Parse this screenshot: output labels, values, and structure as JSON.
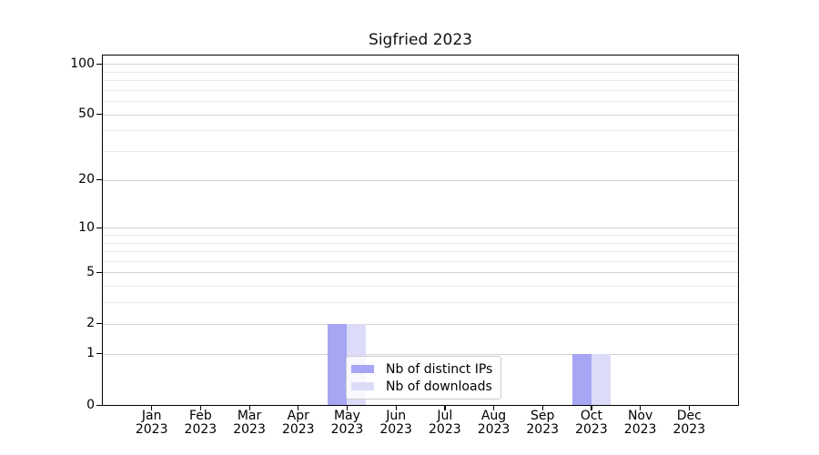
{
  "title": "Sigfried 2023",
  "chart_data": {
    "type": "bar",
    "title": "Sigfried 2023",
    "xlabel": "",
    "ylabel": "",
    "categories": [
      "Jan\n2023",
      "Feb\n2023",
      "Mar\n2023",
      "Apr\n2023",
      "May\n2023",
      "Jun\n2023",
      "Jul\n2023",
      "Aug\n2023",
      "Sep\n2023",
      "Oct\n2023",
      "Nov\n2023",
      "Dec\n2023"
    ],
    "series": [
      {
        "name": "Nb of distinct IPs",
        "color": "#a6a6f4",
        "values": [
          0,
          0,
          0,
          0,
          2,
          0,
          0,
          0,
          0,
          1,
          0,
          0
        ]
      },
      {
        "name": "Nb of downloads",
        "color": "#dcdcf8",
        "values": [
          0,
          0,
          0,
          0,
          2,
          0,
          0,
          0,
          0,
          1,
          0,
          0
        ]
      }
    ],
    "yscale": "log1p",
    "yticks": [
      0,
      1,
      2,
      5,
      10,
      20,
      50,
      100
    ],
    "minor_yticks": [
      3,
      4,
      6,
      7,
      8,
      9,
      30,
      40,
      60,
      70,
      80,
      90
    ],
    "ylim": [
      0,
      112
    ],
    "grid": true,
    "legend_position": "lower center"
  },
  "legend": {
    "items": [
      {
        "label": "Nb of distinct IPs",
        "color": "#a6a6f4"
      },
      {
        "label": "Nb of downloads",
        "color": "#dcdcf8"
      }
    ]
  }
}
